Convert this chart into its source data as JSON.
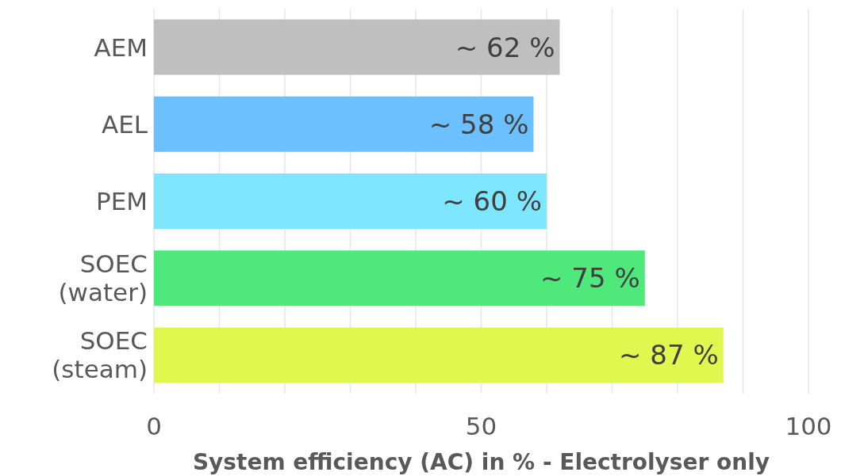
{
  "chart_data": {
    "type": "bar",
    "orientation": "horizontal",
    "xlabel": "System efficiency (AC) in % - Electrolyser only",
    "categories": [
      "AEM",
      "AEL",
      "PEM",
      "SOEC (water)",
      "SOEC (steam)"
    ],
    "values": [
      62,
      58,
      60,
      75,
      87
    ],
    "colors": [
      "#bfbfbf",
      "#6cc0fe",
      "#7ee6fe",
      "#4fe87a",
      "#dff74f"
    ],
    "value_labels": [
      "~ 62 %",
      "~ 58 %",
      "~ 60 %",
      "~ 75 %",
      "~ 87 %"
    ],
    "xlim": [
      0,
      100
    ],
    "xticks": [
      0,
      {
        "value": 10,
        "label": null
      },
      {
        "value": 20,
        "label": null
      },
      {
        "value": 30,
        "label": null
      },
      {
        "value": 40,
        "label": null
      },
      50,
      {
        "value": 60,
        "label": null
      },
      {
        "value": 70,
        "label": null
      },
      {
        "value": 80,
        "label": null
      },
      {
        "value": 90,
        "label": null
      },
      100
    ],
    "grid": "x",
    "legend": false
  }
}
